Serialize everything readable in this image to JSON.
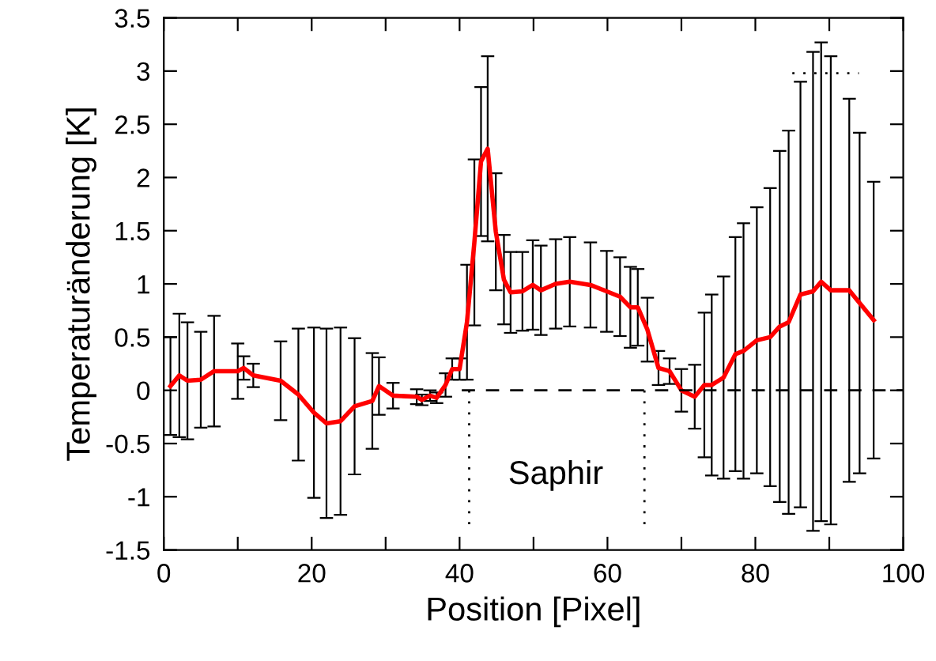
{
  "chart_data": {
    "type": "line",
    "xlabel": "Position [Pixel]",
    "ylabel": "Temperaturänderung [K]",
    "xlim": [
      0,
      100
    ],
    "ylim": [
      -1.5,
      3.5
    ],
    "xticks": [
      0,
      {
        "value": 10,
        "label": null
      },
      20,
      {
        "value": 30,
        "label": null
      },
      40,
      {
        "value": 50,
        "label": null
      },
      60,
      {
        "value": 70,
        "label": null
      },
      80,
      {
        "value": 90,
        "label": null
      },
      100
    ],
    "yticks": [
      -1.5,
      -1,
      -0.5,
      0,
      0.5,
      1,
      1.5,
      2,
      2.5,
      3,
      3.5
    ],
    "grid": false,
    "legend": false,
    "marker": "none",
    "annotations": [
      "Saphir"
    ],
    "series": [
      {
        "color": "#ff0000",
        "line_style": "solid",
        "x": [
          0.9,
          2.1,
          3.2,
          5,
          6.8,
          10,
          10.8,
          12.1,
          15.8,
          18.2,
          20.3,
          22,
          23.9,
          25.8,
          28.2,
          29.1,
          31,
          34.2,
          34.9,
          36,
          36.9,
          38.1,
          39,
          40,
          41,
          42,
          42.9,
          43.8,
          44.9,
          46,
          46.9,
          48.5,
          49.9,
          51,
          53,
          54.9,
          57.7,
          59.9,
          61.7,
          63.1,
          64.1,
          65.4,
          66.9,
          68.4,
          70,
          71.8,
          73.1,
          74.1,
          75.7,
          77.3,
          78.4,
          80.2,
          82,
          83.3,
          84.5,
          86.1,
          87.8,
          88.9,
          90.2,
          92.7,
          94.1,
          96
        ],
        "values": [
          0.04,
          0.14,
          0.09,
          0.1,
          0.18,
          0.18,
          0.21,
          0.14,
          0.09,
          -0.04,
          -0.21,
          -0.31,
          -0.29,
          -0.15,
          -0.1,
          0.04,
          -0.05,
          -0.06,
          -0.09,
          -0.05,
          -0.07,
          0.05,
          0.2,
          0.2,
          0.64,
          1.39,
          2.15,
          2.27,
          1.49,
          1.04,
          0.92,
          0.93,
          0.99,
          0.94,
          1.0,
          1.02,
          0.99,
          0.93,
          0.88,
          0.78,
          0.78,
          0.57,
          0.21,
          0.18,
          0,
          -0.06,
          0.05,
          0.05,
          0.12,
          0.34,
          0.37,
          0.47,
          0.5,
          0.6,
          0.64,
          0.9,
          0.93,
          1.02,
          0.94,
          0.94,
          0.82,
          0.66
        ],
        "errors": [
          0.46,
          0.58,
          0.55,
          0.45,
          0.52,
          0.26,
          0.11,
          0.11,
          0.37,
          0.62,
          0.8,
          0.89,
          0.88,
          0.64,
          0.45,
          0.27,
          0.12,
          0.07,
          0.05,
          0.05,
          0.05,
          0.11,
          0.1,
          0.1,
          0.54,
          0.78,
          0.7,
          0.87,
          0.55,
          0.42,
          0.38,
          0.37,
          0.42,
          0.42,
          0.42,
          0.42,
          0.4,
          0.38,
          0.37,
          0.38,
          0.36,
          0.3,
          0.16,
          0.12,
          0.2,
          0.3,
          0.68,
          0.85,
          0.95,
          1.1,
          1.2,
          1.25,
          1.4,
          1.65,
          1.8,
          2.0,
          2.25,
          2.25,
          2.2,
          1.8,
          1.6,
          1.3
        ]
      },
      {
        "color": "#000000",
        "line_style": "dashed",
        "x": [
          40.3,
          100
        ],
        "values": [
          0,
          0
        ]
      },
      {
        "color": "#000000",
        "line_style": "dotted",
        "x": [
          41.3,
          41.3
        ],
        "values": [
          0,
          -1.3
        ]
      },
      {
        "color": "#000000",
        "line_style": "dotted",
        "x": [
          65,
          65
        ],
        "values": [
          0,
          -1.3
        ]
      },
      {
        "color": "#000000",
        "line_style": "dotted",
        "x": [
          85,
          94
        ],
        "values": [
          2.98,
          2.98
        ]
      }
    ]
  }
}
